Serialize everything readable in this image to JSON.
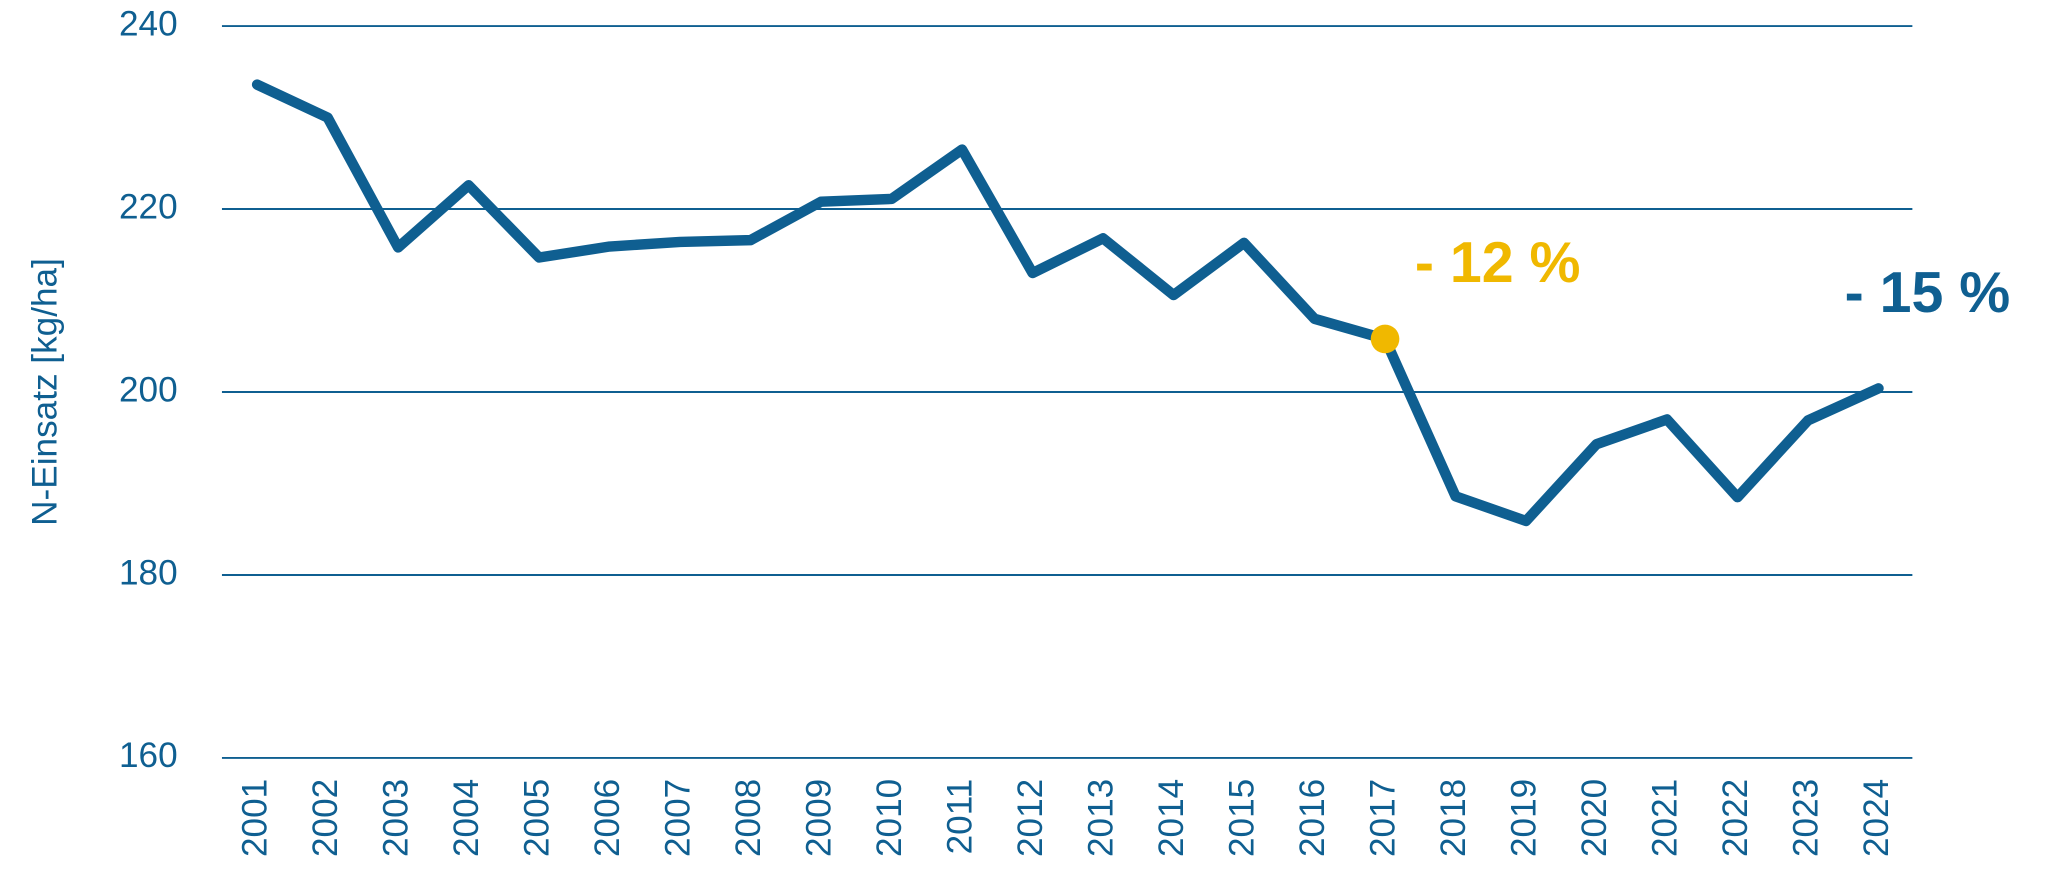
{
  "chart_data": {
    "type": "line",
    "ylabel": "N-Einsatz [kg/ha]",
    "categories": [
      "2001",
      "2002",
      "2003",
      "2004",
      "2005",
      "2006",
      "2007",
      "2008",
      "2009",
      "2010",
      "2011",
      "2012",
      "2013",
      "2014",
      "2015",
      "2016",
      "2017",
      "2018",
      "2019",
      "2020",
      "2021",
      "2022",
      "2023",
      "2024"
    ],
    "series": [
      {
        "color": "#0f5f91",
        "values": [
          233.6,
          230.0,
          215.8,
          222.6,
          214.7,
          215.9,
          216.4,
          216.6,
          220.8,
          221.1,
          226.5,
          213.0,
          216.8,
          210.6,
          216.3,
          208.0,
          205.8,
          188.6,
          185.9,
          194.3,
          197.0,
          188.5,
          196.9,
          200.4
        ]
      }
    ],
    "ylim": [
      160,
      240
    ],
    "yticks": [
      160,
      180,
      200,
      220,
      240
    ],
    "grid": true,
    "annotations": [
      {
        "text": "- 12 %",
        "color": "#f0b800"
      },
      {
        "text": "- 15 %",
        "color": "#0f5f91"
      }
    ]
  }
}
